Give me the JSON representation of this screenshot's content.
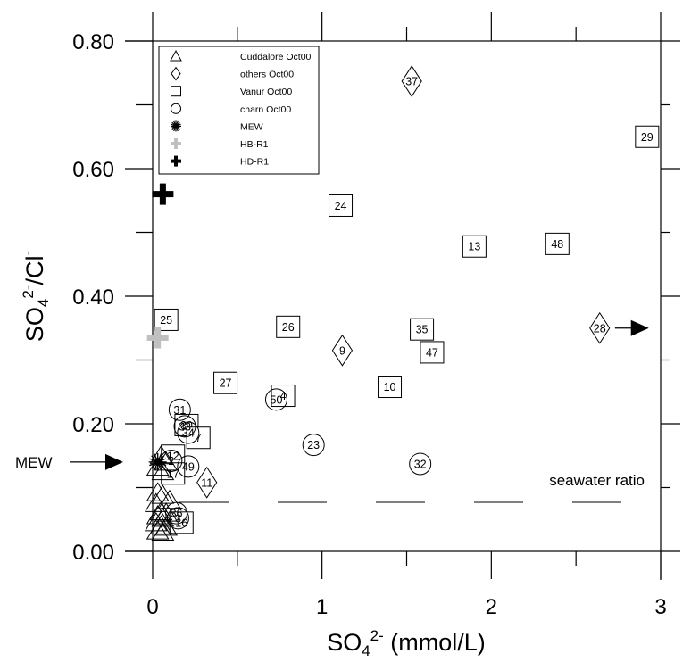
{
  "chart_data": {
    "type": "scatter",
    "xlabel": "SO4 2- (mmol/L)",
    "ylabel": "SO4 2-/Cl-",
    "xlabel_parts": {
      "base": "SO",
      "sub": "4",
      "sup": "2-",
      "tail": " (mmol/L)"
    },
    "ylabel_parts": {
      "base": "SO",
      "sub": "4",
      "sup": "2-",
      "tail": "/Cl",
      "tail_sup": "-"
    },
    "xlim": [
      0,
      3
    ],
    "ylim": [
      0,
      0.8
    ],
    "x_ticks": [
      "0",
      "1",
      "2",
      "3"
    ],
    "y_ticks": [
      "0.00",
      "0.20",
      "0.40",
      "0.60",
      "0.80"
    ],
    "legend_position": "top-left",
    "legend": [
      {
        "marker": "triangle",
        "label": "Cuddalore Oct00",
        "color": "#000000"
      },
      {
        "marker": "diamond",
        "label": "others Oct00",
        "color": "#000000"
      },
      {
        "marker": "square",
        "label": "Vanur Oct00",
        "color": "#000000"
      },
      {
        "marker": "circle",
        "label": "charn Oct00",
        "color": "#000000"
      },
      {
        "marker": "star",
        "label": "MEW",
        "color": "#000000"
      },
      {
        "marker": "plus",
        "label": "HB-R1",
        "color": "#c0c0c0"
      },
      {
        "marker": "plus",
        "label": "HD-R1",
        "color": "#000000"
      }
    ],
    "series": [
      {
        "name": "Vanur Oct00",
        "marker": "square",
        "points": [
          {
            "x": 2.92,
            "y": 0.65,
            "label": "29"
          },
          {
            "x": 1.11,
            "y": 0.542,
            "label": "24"
          },
          {
            "x": 2.39,
            "y": 0.482,
            "label": "48"
          },
          {
            "x": 1.9,
            "y": 0.478,
            "label": "13"
          },
          {
            "x": 0.08,
            "y": 0.363,
            "label": "25"
          },
          {
            "x": 0.8,
            "y": 0.352,
            "label": "26"
          },
          {
            "x": 1.59,
            "y": 0.348,
            "label": "35"
          },
          {
            "x": 1.65,
            "y": 0.312,
            "label": "47"
          },
          {
            "x": 0.43,
            "y": 0.264,
            "label": "27"
          },
          {
            "x": 1.4,
            "y": 0.258,
            "label": "10"
          },
          {
            "x": 0.77,
            "y": 0.244,
            "label": "4"
          },
          {
            "x": 0.2,
            "y": 0.198,
            "label": "30"
          },
          {
            "x": 0.27,
            "y": 0.178,
            "label": "7"
          },
          {
            "x": 0.12,
            "y": 0.15,
            "label": "12"
          },
          {
            "x": 0.12,
            "y": 0.122,
            "label": "17"
          },
          {
            "x": 0.17,
            "y": 0.045,
            "label": "16"
          }
        ]
      },
      {
        "name": "others Oct00",
        "marker": "diamond",
        "points": [
          {
            "x": 1.53,
            "y": 0.737,
            "label": "37"
          },
          {
            "x": 2.64,
            "y": 0.35,
            "label": "28"
          },
          {
            "x": 1.12,
            "y": 0.315,
            "label": "9"
          },
          {
            "x": 0.32,
            "y": 0.108,
            "label": "11"
          }
        ]
      },
      {
        "name": "charn Oct00",
        "marker": "circle",
        "points": [
          {
            "x": 0.16,
            "y": 0.222,
            "label": "31"
          },
          {
            "x": 0.19,
            "y": 0.196,
            "label": "33"
          },
          {
            "x": 0.21,
            "y": 0.186,
            "label": "34"
          },
          {
            "x": 0.73,
            "y": 0.238,
            "label": "50"
          },
          {
            "x": 0.95,
            "y": 0.167,
            "label": "23"
          },
          {
            "x": 1.58,
            "y": 0.137,
            "label": "32"
          },
          {
            "x": 0.21,
            "y": 0.133,
            "label": "49"
          },
          {
            "x": 0.11,
            "y": 0.142,
            "label": "2"
          },
          {
            "x": 0.14,
            "y": 0.06,
            "label": "36"
          },
          {
            "x": 0.15,
            "y": 0.052,
            "label": "3"
          }
        ]
      },
      {
        "name": "Cuddalore Oct00",
        "marker": "triangle",
        "points": [
          {
            "x": 0.05,
            "y": 0.15,
            "label": ""
          },
          {
            "x": 0.08,
            "y": 0.14,
            "label": ""
          },
          {
            "x": 0.03,
            "y": 0.132,
            "label": ""
          },
          {
            "x": 0.06,
            "y": 0.125,
            "label": ""
          },
          {
            "x": 0.03,
            "y": 0.092,
            "label": ""
          },
          {
            "x": 0.06,
            "y": 0.088,
            "label": ""
          },
          {
            "x": 0.1,
            "y": 0.08,
            "label": ""
          },
          {
            "x": 0.02,
            "y": 0.075,
            "label": ""
          },
          {
            "x": 0.05,
            "y": 0.062,
            "label": ""
          },
          {
            "x": 0.08,
            "y": 0.06,
            "label": ""
          },
          {
            "x": 0.03,
            "y": 0.056,
            "label": ""
          },
          {
            "x": 0.06,
            "y": 0.052,
            "label": ""
          },
          {
            "x": 0.02,
            "y": 0.045,
            "label": ""
          },
          {
            "x": 0.05,
            "y": 0.04,
            "label": ""
          },
          {
            "x": 0.08,
            "y": 0.038,
            "label": ""
          },
          {
            "x": 0.03,
            "y": 0.032,
            "label": ""
          },
          {
            "x": 0.06,
            "y": 0.03,
            "label": ""
          }
        ]
      },
      {
        "name": "MEW",
        "marker": "star",
        "points": [
          {
            "x": 0.03,
            "y": 0.14,
            "label": ""
          }
        ]
      },
      {
        "name": "HB-R1",
        "marker": "plus",
        "color": "#c0c0c0",
        "points": [
          {
            "x": 0.03,
            "y": 0.335,
            "label": ""
          }
        ]
      },
      {
        "name": "HD-R1",
        "marker": "plus",
        "color": "#000000",
        "points": [
          {
            "x": 0.06,
            "y": 0.56,
            "label": ""
          }
        ]
      }
    ],
    "reference_line": {
      "label": "seawater ratio",
      "y": 0.077,
      "style": "dashed"
    },
    "annotations": [
      {
        "text": "MEW",
        "arrow_to": {
          "x": 0.0,
          "y": 0.14
        }
      },
      {
        "text": "",
        "arrow_from": {
          "x": 2.73,
          "y": 0.35
        },
        "arrow_to": {
          "x": 2.93,
          "y": 0.35
        }
      }
    ]
  }
}
